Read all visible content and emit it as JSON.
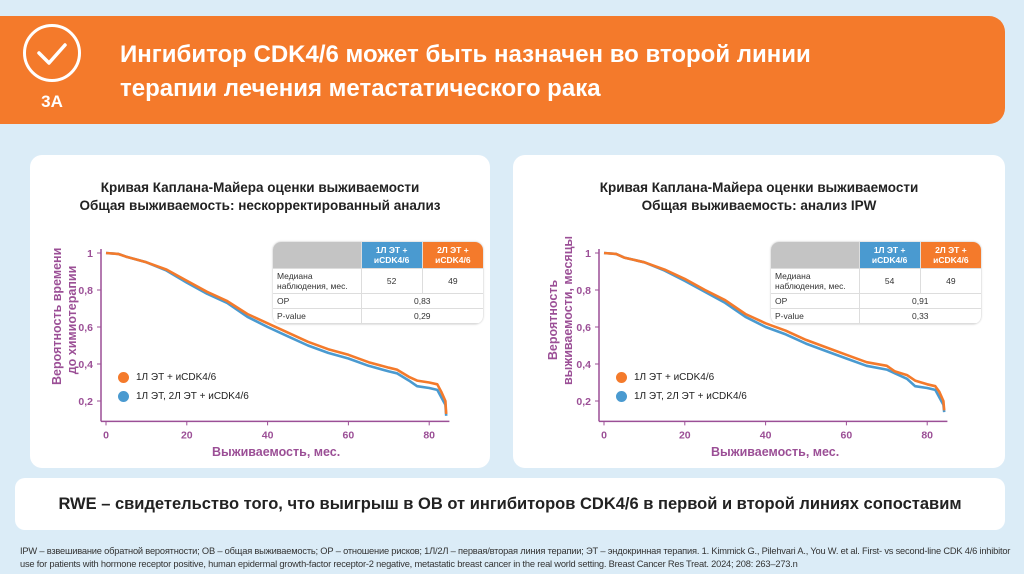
{
  "header": {
    "badge": "3А",
    "title_line1": "Ингибитор CDK4/6 может быть назначен во второй линии",
    "title_line2": "терапии лечения метастатического рака"
  },
  "colors": {
    "orange": "#f47a2b",
    "blue": "#4a9ad0",
    "axis": "#9b4f96"
  },
  "charts": [
    {
      "title1": "Кривая Каплана-Майера оценки выживаемости",
      "title2": "Общая выживаемость: нескорректированный анализ",
      "ylabel1": "Вероятность времени",
      "ylabel2": "до химиотерапии",
      "xlabel": "Выживаемость, мес.",
      "table": {
        "col1": "1Л ЭТ + иCDK4/6",
        "col2": "2Л ЭТ + иCDK4/6",
        "row1_label": "Медиана наблюдения, мес.",
        "row1_v1": "52",
        "row1_v2": "49",
        "row2_label": "ОР",
        "row2_v": "0,83",
        "row3_label": "P-value",
        "row3_v": "0,29"
      }
    },
    {
      "title1": "Кривая Каплана-Майера оценки выживаемости",
      "title2": "Общая выживаемость: анализ IPW",
      "ylabel1": "Вероятность",
      "ylabel2": "выживаемости, месяцы",
      "xlabel": "Выживаемость, мес.",
      "table": {
        "col1": "1Л ЭТ + иCDK4/6",
        "col2": "2Л ЭТ + иCDK4/6",
        "row1_label": "Медиана наблюдения, мес.",
        "row1_v1": "54",
        "row1_v2": "49",
        "row2_label": "ОР",
        "row2_v": "0,91",
        "row3_label": "P-value",
        "row3_v": "0,33"
      }
    }
  ],
  "chart_data": [
    {
      "type": "line",
      "title": "Кривая Каплана-Майера оценки выживаемости — Общая выживаемость: нескорректированный анализ",
      "xlabel": "Выживаемость, мес.",
      "ylabel": "Вероятность времени до химиотерапии",
      "xlim": [
        -1,
        85
      ],
      "ylim": [
        0.09,
        1.0
      ],
      "xticks": [
        "0",
        "20",
        "40",
        "60",
        "80"
      ],
      "xtick_values": [
        0,
        20,
        40,
        60,
        80
      ],
      "yticks": [
        "0,2",
        "0,4",
        "0,6",
        "0,8",
        "1"
      ],
      "ytick_values": [
        0.2,
        0.4,
        0.6,
        0.8,
        1.0
      ],
      "legend": "bottom-left",
      "series": [
        {
          "name": "1Л ЭТ + иCDK4/6",
          "color": "#f47a2b",
          "x": [
            0,
            3,
            5,
            10,
            15,
            20,
            25,
            30,
            35,
            40,
            45,
            50,
            55,
            60,
            65,
            70,
            72,
            75,
            77,
            80,
            82,
            83,
            84,
            84.2
          ],
          "y": [
            1,
            0.995,
            0.98,
            0.95,
            0.91,
            0.85,
            0.79,
            0.74,
            0.67,
            0.62,
            0.57,
            0.52,
            0.48,
            0.45,
            0.41,
            0.38,
            0.37,
            0.33,
            0.31,
            0.3,
            0.29,
            0.25,
            0.2,
            0.13
          ]
        },
        {
          "name": "1Л ЭТ, 2Л ЭТ + иCDK4/6",
          "color": "#4a9ad0",
          "x": [
            0,
            3,
            5,
            10,
            15,
            20,
            25,
            30,
            35,
            40,
            45,
            50,
            55,
            60,
            65,
            70,
            72,
            75,
            77,
            80,
            82,
            83,
            84,
            84.2
          ],
          "y": [
            1,
            0.995,
            0.98,
            0.95,
            0.905,
            0.84,
            0.78,
            0.73,
            0.655,
            0.6,
            0.55,
            0.5,
            0.46,
            0.43,
            0.39,
            0.36,
            0.35,
            0.31,
            0.28,
            0.27,
            0.26,
            0.22,
            0.18,
            0.12
          ]
        }
      ]
    },
    {
      "type": "line",
      "title": "Кривая Каплана-Майера оценки выживаемости — Общая выживаемость: анализ IPW",
      "xlabel": "Выживаемость, мес.",
      "ylabel": "Вероятность выживаемости, месяцы",
      "xlim": [
        -1,
        85
      ],
      "ylim": [
        0.09,
        1.0
      ],
      "xticks": [
        "0",
        "20",
        "40",
        "60",
        "80"
      ],
      "xtick_values": [
        0,
        20,
        40,
        60,
        80
      ],
      "yticks": [
        "0,2",
        "0,4",
        "0,6",
        "0,8",
        "1"
      ],
      "ytick_values": [
        0.2,
        0.4,
        0.6,
        0.8,
        1.0
      ],
      "legend": "bottom-left",
      "series": [
        {
          "name": "1Л ЭТ + иCDK4/6",
          "color": "#f47a2b",
          "x": [
            0,
            3,
            5,
            10,
            15,
            20,
            25,
            30,
            35,
            40,
            45,
            50,
            55,
            60,
            65,
            70,
            72,
            75,
            77,
            80,
            82,
            83,
            84,
            84.2
          ],
          "y": [
            1,
            0.995,
            0.975,
            0.95,
            0.91,
            0.86,
            0.8,
            0.745,
            0.67,
            0.62,
            0.58,
            0.53,
            0.49,
            0.45,
            0.41,
            0.39,
            0.36,
            0.34,
            0.31,
            0.29,
            0.28,
            0.25,
            0.2,
            0.15
          ]
        },
        {
          "name": "1Л ЭТ, 2Л ЭТ + иCDK4/6",
          "color": "#4a9ad0",
          "x": [
            0,
            3,
            5,
            10,
            15,
            20,
            25,
            30,
            35,
            40,
            45,
            50,
            55,
            60,
            65,
            70,
            72,
            75,
            77,
            80,
            82,
            83,
            84,
            84.2
          ],
          "y": [
            1,
            0.995,
            0.975,
            0.95,
            0.905,
            0.85,
            0.79,
            0.73,
            0.655,
            0.6,
            0.56,
            0.51,
            0.47,
            0.43,
            0.39,
            0.37,
            0.35,
            0.32,
            0.28,
            0.27,
            0.26,
            0.22,
            0.18,
            0.14
          ]
        }
      ]
    }
  ],
  "rwe": "RWE – свидетельство того, что выигрыш в ОВ от ингибиторов CDK4/6 в первой и второй линиях сопоставим",
  "footnote": "IPW – взвешивание обратной вероятности; ОВ – общая выживаемость; ОР – отношение рисков; 1Л/2Л – первая/вторая линия терапии; ЭТ – эндокринная терапия. 1. Kimmick G., Pilehvari A., You W. et al. First- vs second-line CDK 4/6 inhibitor use for patients with hormone receptor positive, human epidermal growth-factor receptor-2 negative, metastatic breast cancer in the real world setting. Breast Cancer Res Treat. 2024; 208: 263–273.n"
}
